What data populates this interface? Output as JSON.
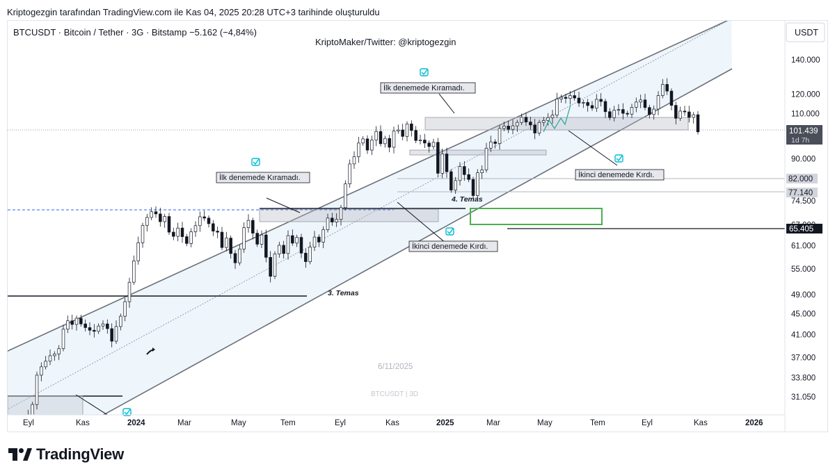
{
  "caption": "Kriptogezgin tarafından TradingView.com ile Kas 04, 2025 20:28 UTC+3 tarihinde oluşturuldu",
  "brand": {
    "name": "TradingView",
    "logo_icon": "tradingview-logo-icon"
  },
  "chart_data": {
    "type": "candlestick",
    "symbol_line": "BTCUSDT · Bitcoin / Tether · 3G · Bitstamp  −5.162 (−4,84%)",
    "author": "KriptoMaker/Twitter: @kriptogezgin",
    "currency": "USDT",
    "watermark_date": "6/11/2025",
    "watermark_symbol": "BTCUSDT | 3D",
    "y_scale": "log",
    "x_ticks": [
      "Eyl",
      "Kas",
      "2024",
      "Mar",
      "May",
      "Tem",
      "Eyl",
      "Kas",
      "2025",
      "Mar",
      "May",
      "Tem",
      "Eyl",
      "Kas",
      "2026"
    ],
    "y_ticks": [
      "140.000",
      "120.000",
      "110.000",
      "90.000",
      "74.500",
      "67.000",
      "61.000",
      "55.000",
      "49.000",
      "45.000",
      "41.000",
      "37.000",
      "33.800",
      "31.050"
    ],
    "last_price": {
      "value": "101.439",
      "countdown": "1d 7h"
    },
    "price_labels": [
      "82.000",
      "77.140",
      "65.405"
    ],
    "annotations": [
      {
        "text": "İlk denemede Kıramadı."
      },
      {
        "text": "İkinci denemede Kırdı."
      },
      {
        "text": "İlk denemede Kıramadı."
      },
      {
        "text": "İkinci denemede Kırdı."
      }
    ],
    "touch_labels": [
      "3. Temas",
      "4. Temas"
    ],
    "series": [
      {
        "name": "BTCUSDT",
        "close": [
          25800,
          26500,
          27300,
          27000,
          28500,
          30000,
          34200,
          35500,
          36400,
          37300,
          37600,
          38500,
          42000,
          43600,
          42900,
          44100,
          43000,
          42300,
          41800,
          41600,
          42600,
          43000,
          42100,
          39800,
          42500,
          44500,
          47500,
          51800,
          57000,
          61800,
          66800,
          69200,
          71000,
          70300,
          67900,
          69500,
          64800,
          63600,
          66000,
          63500,
          61600,
          64900,
          66700,
          69400,
          69000,
          67300,
          65100,
          64800,
          60500,
          63100,
          58900,
          56500,
          60100,
          66100,
          68300,
          64500,
          61400,
          64000,
          57900,
          53200,
          58800,
          61100,
          58900,
          63800,
          61700,
          63300,
          59000,
          56800,
          60600,
          63400,
          62000,
          65500,
          69000,
          67800,
          68600,
          72300,
          80400,
          87900,
          90800,
          96500,
          98300,
          93500,
          97800,
          101600,
          96200,
          98500,
          94700,
          101800,
          102300,
          99400,
          105100,
          102100,
          97600,
          97800,
          96500,
          95000,
          96800,
          84300,
          91900,
          84900,
          78200,
          81600,
          86900,
          83800,
          82000,
          76300,
          84500,
          85600,
          94300,
          97000,
          96300,
          103000,
          104100,
          102600,
          104200,
          105800,
          108300,
          106000,
          104600,
          100900,
          105800,
          106700,
          108100,
          109300,
          117500,
          118400,
          117800,
          119300,
          118000,
          115400,
          115700,
          114100,
          112800,
          117300,
          116200,
          111000,
          108100,
          111700,
          112100,
          110200,
          109800,
          113200,
          115900,
          117000,
          113100,
          109600,
          112300,
          119300,
          125400,
          121700,
          114200,
          107800,
          111300,
          110900,
          108200,
          109500,
          101439
        ]
      }
    ]
  }
}
